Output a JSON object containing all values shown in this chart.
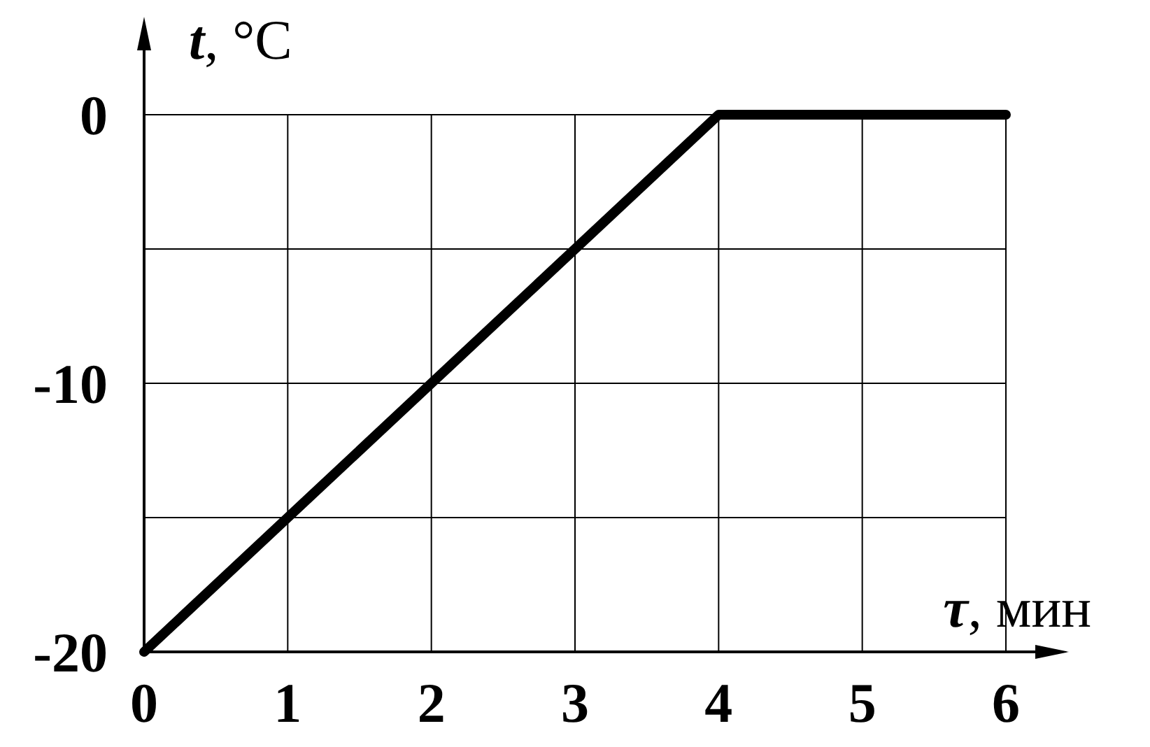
{
  "chart_data": {
    "type": "line",
    "xlabel": "τ, мин",
    "ylabel": "t, °C",
    "x": [
      0,
      4,
      6
    ],
    "series": [
      {
        "color": "#000000",
        "values": [
          -20,
          0,
          0
        ]
      }
    ],
    "xlim": [
      0,
      6
    ],
    "xticks": [
      0,
      1,
      2,
      3,
      4,
      5,
      6
    ],
    "ylim": [
      -20,
      0
    ],
    "yticks": [
      0,
      {
        "value": -5,
        "label": null
      },
      -10,
      {
        "value": -15,
        "label": null
      },
      -20
    ],
    "grid": true,
    "marker": "none",
    "line_style": "solid"
  }
}
